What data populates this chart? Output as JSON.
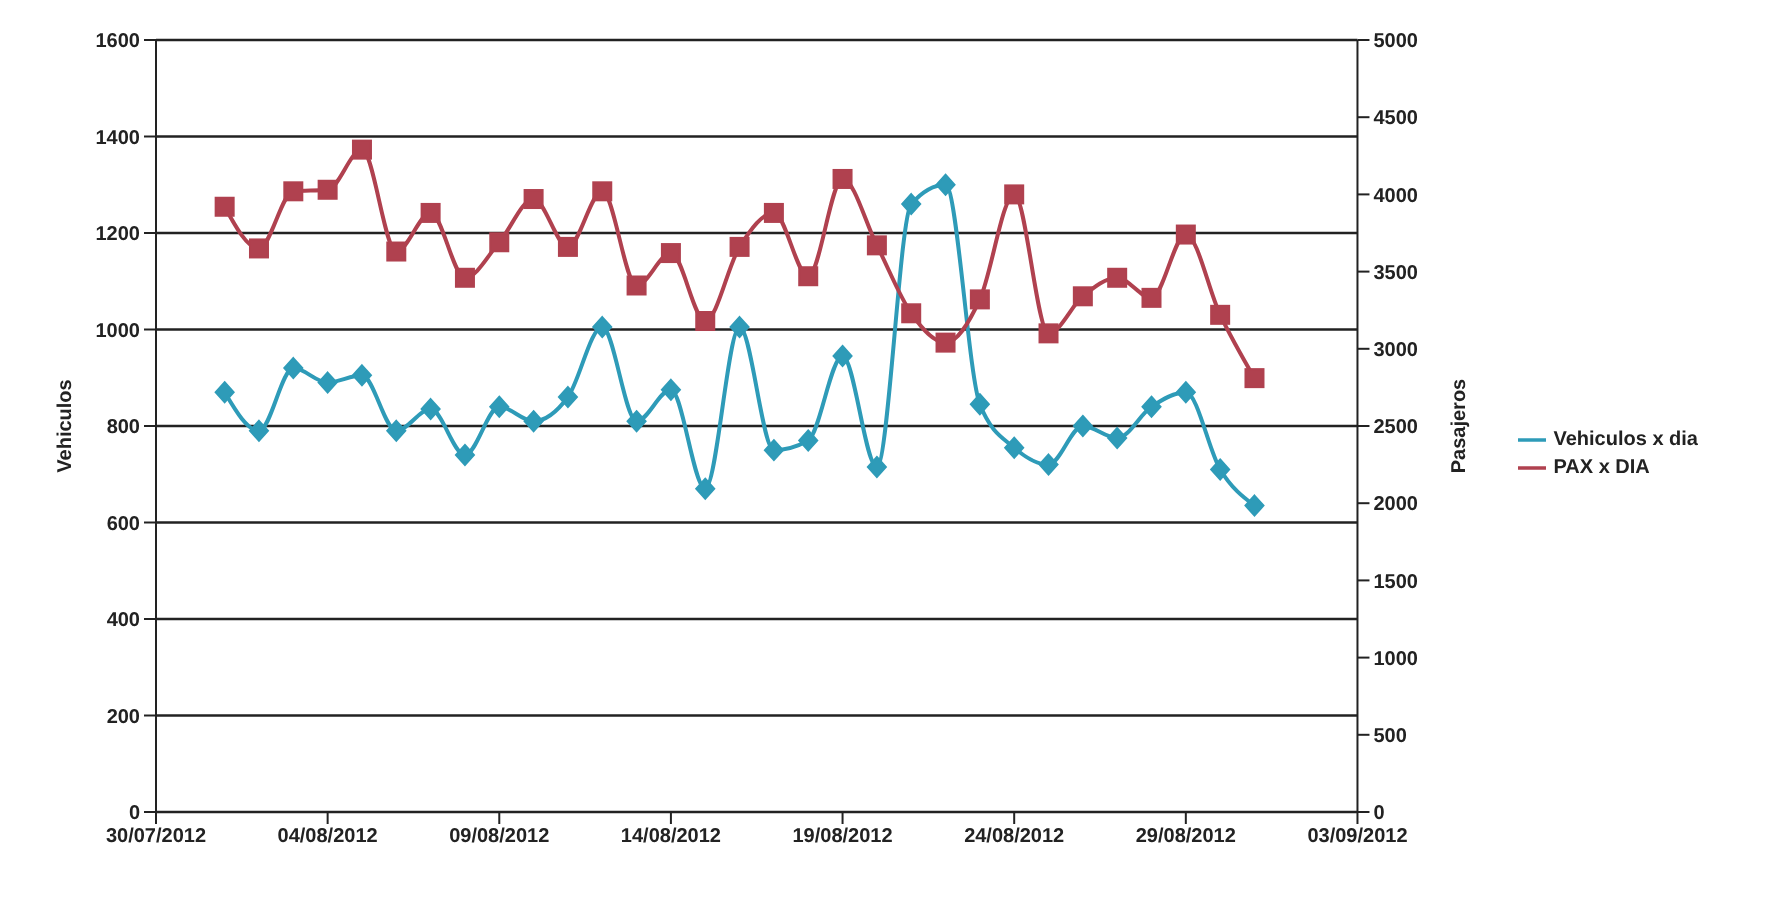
{
  "chart_data": {
    "type": "line",
    "xlabel": null,
    "ylabel": "Vehiculos",
    "y2label": "Pasajeros",
    "x": [
      "2012-08-01",
      "2012-08-02",
      "2012-08-03",
      "2012-08-04",
      "2012-08-05",
      "2012-08-06",
      "2012-08-07",
      "2012-08-08",
      "2012-08-09",
      "2012-08-10",
      "2012-08-11",
      "2012-08-12",
      "2012-08-13",
      "2012-08-14",
      "2012-08-15",
      "2012-08-16",
      "2012-08-17",
      "2012-08-18",
      "2012-08-19",
      "2012-08-20",
      "2012-08-21",
      "2012-08-22",
      "2012-08-23",
      "2012-08-24",
      "2012-08-25",
      "2012-08-26",
      "2012-08-27",
      "2012-08-28",
      "2012-08-29",
      "2012-08-30",
      "2012-08-31"
    ],
    "series": [
      {
        "name": "Vehiculos x dia",
        "color": "#2e9bb8",
        "marker": "diamond",
        "values": [
          870,
          790,
          920,
          890,
          905,
          790,
          835,
          740,
          840,
          810,
          860,
          1005,
          810,
          875,
          670,
          1005,
          750,
          770,
          945,
          715,
          1260,
          1300,
          845,
          755,
          720,
          800,
          775,
          840,
          870,
          710,
          635
        ]
      },
      {
        "name": "PAX x DIA",
        "color": "#b0414f",
        "marker": "square",
        "axis": "y2",
        "values": [
          3920,
          3650,
          4020,
          4030,
          4290,
          3630,
          3880,
          3460,
          3690,
          3970,
          3660,
          4020,
          3410,
          3620,
          3180,
          3660,
          3880,
          3470,
          4100,
          3670,
          3230,
          3040,
          3320,
          4000,
          3100,
          3340,
          3460,
          3330,
          3740,
          3220,
          2810
        ]
      }
    ],
    "xlim": [
      "2012-07-30",
      "2012-09-03"
    ],
    "xticks": [
      {
        "value": "2012-07-30",
        "label": "30/07/2012"
      },
      {
        "value": "2012-08-04",
        "label": "04/08/2012"
      },
      {
        "value": "2012-08-09",
        "label": "09/08/2012"
      },
      {
        "value": "2012-08-14",
        "label": "14/08/2012"
      },
      {
        "value": "2012-08-19",
        "label": "19/08/2012"
      },
      {
        "value": "2012-08-24",
        "label": "24/08/2012"
      },
      {
        "value": "2012-08-29",
        "label": "29/08/2012"
      },
      {
        "value": "2012-09-03",
        "label": "03/09/2012"
      }
    ],
    "ylim": [
      0,
      1600
    ],
    "yticks": [
      0,
      200,
      400,
      600,
      800,
      1000,
      1200,
      1400,
      1600
    ],
    "y2lim": [
      0,
      5000
    ],
    "y2ticks": [
      0,
      500,
      1000,
      1500,
      2000,
      2500,
      3000,
      3500,
      4000,
      4500,
      5000
    ],
    "grid": "y",
    "legend": "right"
  }
}
